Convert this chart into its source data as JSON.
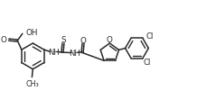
{
  "background_color": "#ffffff",
  "line_color": "#2a2a2a",
  "line_width": 1.1,
  "font_size": 5.8,
  "fig_width": 2.18,
  "fig_height": 1.21,
  "xlim": [
    0,
    11
  ],
  "ylim": [
    0,
    6.5
  ]
}
